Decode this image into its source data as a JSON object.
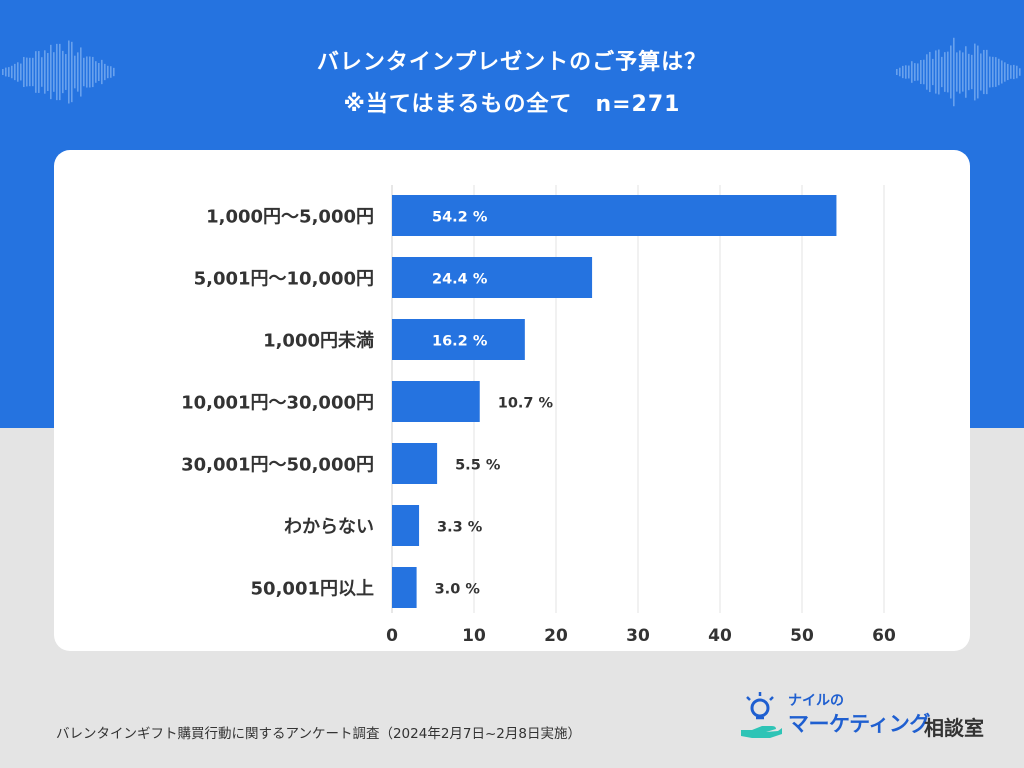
{
  "title": {
    "line1": "バレンタインプレゼントのご予算は？",
    "line2": "※当てはまるもの全て　n=271"
  },
  "chart_data": {
    "type": "bar",
    "orientation": "horizontal",
    "categories": [
      "1,000円～5,000円",
      "5,001円～10,000円",
      "1,000円未満",
      "10,001円～30,000円",
      "30,001円～50,000円",
      "わからない",
      "50,001円以上"
    ],
    "values": [
      54.2,
      24.4,
      16.2,
      10.7,
      5.5,
      3.3,
      3.0
    ],
    "value_labels": [
      "54.2 %",
      "24.4 %",
      "16.2 %",
      "10.7 %",
      "5.5 %",
      "3.3 %",
      "3.0 %"
    ],
    "xlim": [
      0,
      60
    ],
    "xticks": [
      0,
      10,
      20,
      30,
      40,
      50,
      60
    ],
    "grid": true,
    "bar_color": "#2573e0"
  },
  "footer": {
    "note": "バレンタインギフト購買行動に関するアンケート調査（2024年2月7日~2月8日実施）"
  },
  "logo": {
    "small": "ナイルの",
    "main": "マーケティング",
    "suffix": "相談室"
  },
  "colors": {
    "background_top": "#2573e0",
    "background_bottom": "#e4e4e4",
    "accent": "#2573e0"
  }
}
